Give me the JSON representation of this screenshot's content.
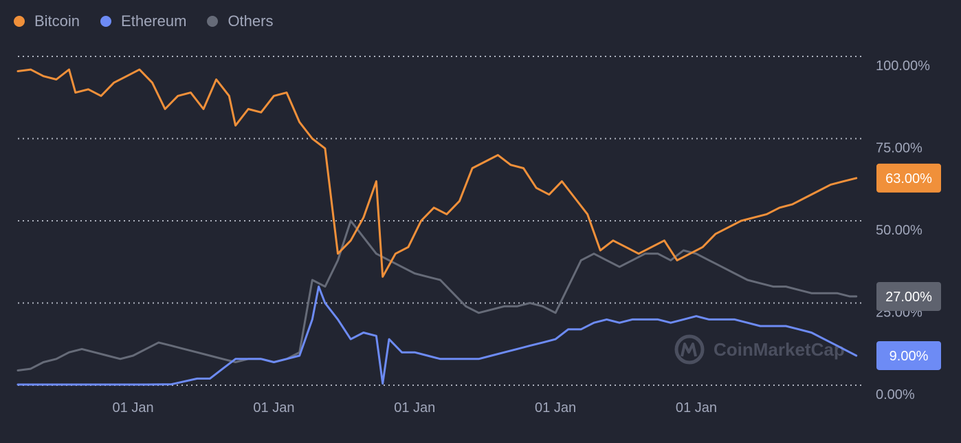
{
  "legend": [
    {
      "label": "Bitcoin",
      "color": "#f0903a"
    },
    {
      "label": "Ethereum",
      "color": "#6d8bf5"
    },
    {
      "label": "Others",
      "color": "#666b78"
    }
  ],
  "watermark": "CoinMarketCap",
  "chart_data": {
    "type": "line",
    "title": "",
    "xlabel": "",
    "ylabel": "",
    "ylim": [
      0,
      100
    ],
    "grid": true,
    "legend_position": "top-left",
    "y_ticks": [
      "0.00%",
      "25.00%",
      "50.00%",
      "75.00%",
      "100.00%"
    ],
    "y_tick_values": [
      0,
      25,
      50,
      75,
      100
    ],
    "x_ticks": [
      "01 Jan",
      "01 Jan",
      "01 Jan",
      "01 Jan",
      "01 Jan"
    ],
    "x_tick_values": [
      18,
      40,
      62,
      84,
      106
    ],
    "x_range": [
      0,
      132
    ],
    "current_values": [
      {
        "series": "Bitcoin",
        "label": "63.00%",
        "value": 63,
        "color": "#f0903a"
      },
      {
        "series": "Others",
        "label": "27.00%",
        "value": 27,
        "color": "#5e626e"
      },
      {
        "series": "Ethereum",
        "label": "9.00%",
        "value": 9,
        "color": "#6d8bf5"
      }
    ],
    "series": [
      {
        "name": "Bitcoin",
        "color": "#f0903a",
        "points": [
          [
            0,
            95.5
          ],
          [
            2,
            96
          ],
          [
            4,
            94
          ],
          [
            6,
            93
          ],
          [
            8,
            96
          ],
          [
            9,
            89
          ],
          [
            11,
            90
          ],
          [
            13,
            88
          ],
          [
            15,
            92
          ],
          [
            17,
            94
          ],
          [
            19,
            96
          ],
          [
            21,
            92
          ],
          [
            23,
            84
          ],
          [
            25,
            88
          ],
          [
            27,
            89
          ],
          [
            29,
            84
          ],
          [
            31,
            93
          ],
          [
            33,
            88
          ],
          [
            34,
            79
          ],
          [
            36,
            84
          ],
          [
            38,
            83
          ],
          [
            40,
            88
          ],
          [
            42,
            89
          ],
          [
            44,
            80
          ],
          [
            46,
            75
          ],
          [
            48,
            72
          ],
          [
            50,
            40
          ],
          [
            52,
            44
          ],
          [
            54,
            51
          ],
          [
            56,
            62
          ],
          [
            57,
            33
          ],
          [
            59,
            40
          ],
          [
            61,
            42
          ],
          [
            63,
            50
          ],
          [
            65,
            54
          ],
          [
            67,
            52
          ],
          [
            69,
            56
          ],
          [
            71,
            66
          ],
          [
            73,
            68
          ],
          [
            75,
            70
          ],
          [
            77,
            67
          ],
          [
            79,
            66
          ],
          [
            81,
            60
          ],
          [
            83,
            58
          ],
          [
            85,
            62
          ],
          [
            87,
            57
          ],
          [
            89,
            52
          ],
          [
            91,
            41
          ],
          [
            93,
            44
          ],
          [
            95,
            42
          ],
          [
            97,
            40
          ],
          [
            99,
            42
          ],
          [
            101,
            44
          ],
          [
            103,
            38
          ],
          [
            105,
            40
          ],
          [
            107,
            42
          ],
          [
            109,
            46
          ],
          [
            111,
            48
          ],
          [
            113,
            50
          ],
          [
            115,
            51
          ],
          [
            117,
            52
          ],
          [
            119,
            54
          ],
          [
            121,
            55
          ],
          [
            123,
            57
          ],
          [
            125,
            59
          ],
          [
            127,
            61
          ],
          [
            129,
            62
          ],
          [
            131,
            63
          ]
        ]
      },
      {
        "name": "Ethereum",
        "color": "#6d8bf5",
        "points": [
          [
            0,
            0.2
          ],
          [
            4,
            0.2
          ],
          [
            8,
            0.2
          ],
          [
            12,
            0.2
          ],
          [
            16,
            0.2
          ],
          [
            20,
            0.2
          ],
          [
            24,
            0.3
          ],
          [
            28,
            2
          ],
          [
            30,
            2
          ],
          [
            32,
            5
          ],
          [
            34,
            8
          ],
          [
            36,
            8
          ],
          [
            38,
            8
          ],
          [
            40,
            7
          ],
          [
            42,
            8
          ],
          [
            44,
            9
          ],
          [
            46,
            20
          ],
          [
            47,
            30
          ],
          [
            48,
            25
          ],
          [
            50,
            20
          ],
          [
            52,
            14
          ],
          [
            54,
            16
          ],
          [
            56,
            15
          ],
          [
            57,
            0.5
          ],
          [
            58,
            14
          ],
          [
            60,
            10
          ],
          [
            62,
            10
          ],
          [
            64,
            9
          ],
          [
            66,
            8
          ],
          [
            68,
            8
          ],
          [
            70,
            8
          ],
          [
            72,
            8
          ],
          [
            74,
            9
          ],
          [
            76,
            10
          ],
          [
            78,
            11
          ],
          [
            80,
            12
          ],
          [
            82,
            13
          ],
          [
            84,
            14
          ],
          [
            86,
            17
          ],
          [
            88,
            17
          ],
          [
            90,
            19
          ],
          [
            92,
            20
          ],
          [
            94,
            19
          ],
          [
            96,
            20
          ],
          [
            98,
            20
          ],
          [
            100,
            20
          ],
          [
            102,
            19
          ],
          [
            104,
            20
          ],
          [
            106,
            21
          ],
          [
            108,
            20
          ],
          [
            110,
            20
          ],
          [
            112,
            20
          ],
          [
            114,
            19
          ],
          [
            116,
            18
          ],
          [
            118,
            18
          ],
          [
            120,
            18
          ],
          [
            122,
            17
          ],
          [
            124,
            16
          ],
          [
            126,
            14
          ],
          [
            128,
            12
          ],
          [
            130,
            10
          ],
          [
            131,
            9
          ]
        ]
      },
      {
        "name": "Others",
        "color": "#666b78",
        "points": [
          [
            0,
            4.5
          ],
          [
            2,
            5
          ],
          [
            4,
            7
          ],
          [
            6,
            8
          ],
          [
            8,
            10
          ],
          [
            10,
            11
          ],
          [
            12,
            10
          ],
          [
            14,
            9
          ],
          [
            16,
            8
          ],
          [
            18,
            9
          ],
          [
            20,
            11
          ],
          [
            22,
            13
          ],
          [
            24,
            12
          ],
          [
            26,
            11
          ],
          [
            28,
            10
          ],
          [
            30,
            9
          ],
          [
            32,
            8
          ],
          [
            34,
            7
          ],
          [
            36,
            8
          ],
          [
            38,
            8
          ],
          [
            40,
            7
          ],
          [
            42,
            8
          ],
          [
            44,
            10
          ],
          [
            46,
            32
          ],
          [
            48,
            30
          ],
          [
            50,
            38
          ],
          [
            52,
            50
          ],
          [
            54,
            45
          ],
          [
            56,
            40
          ],
          [
            58,
            38
          ],
          [
            60,
            36
          ],
          [
            62,
            34
          ],
          [
            64,
            33
          ],
          [
            66,
            32
          ],
          [
            68,
            28
          ],
          [
            70,
            24
          ],
          [
            72,
            22
          ],
          [
            74,
            23
          ],
          [
            76,
            24
          ],
          [
            78,
            24
          ],
          [
            80,
            25
          ],
          [
            82,
            24
          ],
          [
            84,
            22
          ],
          [
            86,
            30
          ],
          [
            88,
            38
          ],
          [
            90,
            40
          ],
          [
            92,
            38
          ],
          [
            94,
            36
          ],
          [
            96,
            38
          ],
          [
            98,
            40
          ],
          [
            100,
            40
          ],
          [
            102,
            38
          ],
          [
            104,
            41
          ],
          [
            106,
            40
          ],
          [
            108,
            38
          ],
          [
            110,
            36
          ],
          [
            112,
            34
          ],
          [
            114,
            32
          ],
          [
            116,
            31
          ],
          [
            118,
            30
          ],
          [
            120,
            30
          ],
          [
            122,
            29
          ],
          [
            124,
            28
          ],
          [
            126,
            28
          ],
          [
            128,
            28
          ],
          [
            130,
            27
          ],
          [
            131,
            27
          ]
        ]
      }
    ]
  }
}
